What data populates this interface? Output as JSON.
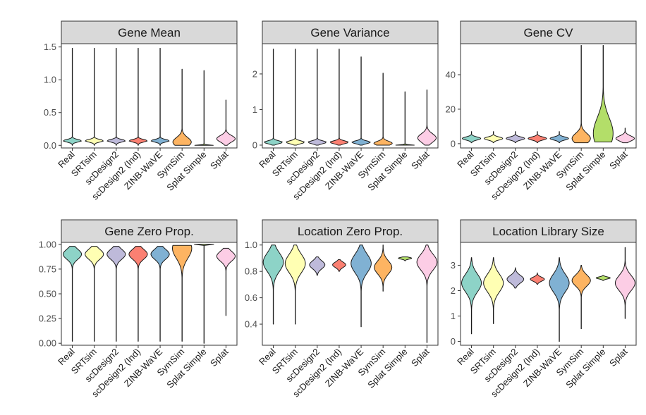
{
  "chart_data": [
    {
      "type": "violin",
      "title": "Gene Mean",
      "ylim": [
        -0.04,
        1.55
      ],
      "yticks": [
        0.0,
        0.5,
        1.0,
        1.5
      ],
      "ytick_labels": [
        "0.0",
        "0.5",
        "1.0",
        "1.5"
      ],
      "categories": [
        "Real",
        "SRTsim",
        "scDesign2",
        "scDesign2 (Ind)",
        "ZINB-WaVE",
        "SymSim",
        "Splat Simple",
        "Splat"
      ],
      "series": [
        {
          "name": "Real",
          "min": 0.0,
          "max": 1.48,
          "mode": 0.07,
          "width": 0.42,
          "spread": 0.02
        },
        {
          "name": "SRTsim",
          "min": 0.0,
          "max": 1.48,
          "mode": 0.07,
          "width": 0.42,
          "spread": 0.02
        },
        {
          "name": "scDesign2",
          "min": 0.0,
          "max": 1.48,
          "mode": 0.07,
          "width": 0.42,
          "spread": 0.02
        },
        {
          "name": "scDesign2 (Ind)",
          "min": 0.0,
          "max": 1.48,
          "mode": 0.07,
          "width": 0.42,
          "spread": 0.02
        },
        {
          "name": "ZINB-WaVE",
          "min": 0.0,
          "max": 1.48,
          "mode": 0.07,
          "width": 0.42,
          "spread": 0.02
        },
        {
          "name": "SymSim",
          "min": 0.0,
          "max": 1.16,
          "mode": 0.05,
          "width": 0.42,
          "spread": 0.07
        },
        {
          "name": "Splat Simple",
          "min": 0.0,
          "max": 1.14,
          "mode": 0.0,
          "width": 0.42,
          "spread": 0.006
        },
        {
          "name": "Splat",
          "min": 0.0,
          "max": 0.69,
          "mode": 0.1,
          "width": 0.42,
          "spread": 0.05
        }
      ]
    },
    {
      "type": "violin",
      "title": "Gene Variance",
      "ylim": [
        -0.08,
        2.85
      ],
      "yticks": [
        0,
        1,
        2
      ],
      "ytick_labels": [
        "0",
        "1",
        "2"
      ],
      "categories": [
        "Real",
        "SRTsim",
        "scDesign2",
        "scDesign2 (Ind)",
        "ZINB-WaVE",
        "SymSim",
        "Splat Simple",
        "Splat"
      ],
      "series": [
        {
          "name": "Real",
          "min": 0.0,
          "max": 2.7,
          "mode": 0.08,
          "width": 0.42,
          "spread": 0.04
        },
        {
          "name": "SRTsim",
          "min": 0.0,
          "max": 2.7,
          "mode": 0.08,
          "width": 0.42,
          "spread": 0.04
        },
        {
          "name": "scDesign2",
          "min": 0.0,
          "max": 2.7,
          "mode": 0.08,
          "width": 0.42,
          "spread": 0.04
        },
        {
          "name": "scDesign2 (Ind)",
          "min": 0.0,
          "max": 2.7,
          "mode": 0.08,
          "width": 0.42,
          "spread": 0.04
        },
        {
          "name": "ZINB-WaVE",
          "min": 0.0,
          "max": 2.48,
          "mode": 0.08,
          "width": 0.42,
          "spread": 0.04
        },
        {
          "name": "SymSim",
          "min": 0.0,
          "max": 2.02,
          "mode": 0.05,
          "width": 0.42,
          "spread": 0.06
        },
        {
          "name": "Splat Simple",
          "min": 0.0,
          "max": 1.5,
          "mode": 0.0,
          "width": 0.42,
          "spread": 0.01
        },
        {
          "name": "Splat",
          "min": 0.0,
          "max": 1.55,
          "mode": 0.2,
          "width": 0.42,
          "spread": 0.12
        }
      ]
    },
    {
      "type": "violin",
      "title": "Gene CV",
      "ylim": [
        -2.5,
        58
      ],
      "yticks": [
        0,
        20,
        40
      ],
      "ytick_labels": [
        "0",
        "20",
        "40"
      ],
      "categories": [
        "Real",
        "SRTsim",
        "scDesign2",
        "scDesign2 (Ind)",
        "ZINB-WaVE",
        "SymSim",
        "Splat Simple",
        "Splat"
      ],
      "series": [
        {
          "name": "Real",
          "min": 0.5,
          "max": 7,
          "mode": 3,
          "width": 0.42,
          "spread": 0.9
        },
        {
          "name": "SRTsim",
          "min": 0.5,
          "max": 7,
          "mode": 3,
          "width": 0.42,
          "spread": 0.9
        },
        {
          "name": "scDesign2",
          "min": 0.5,
          "max": 7,
          "mode": 3,
          "width": 0.42,
          "spread": 0.9
        },
        {
          "name": "scDesign2 (Ind)",
          "min": 0.5,
          "max": 7,
          "mode": 3,
          "width": 0.42,
          "spread": 0.9
        },
        {
          "name": "ZINB-WaVE",
          "min": 0.5,
          "max": 7,
          "mode": 3,
          "width": 0.42,
          "spread": 0.9
        },
        {
          "name": "SymSim",
          "min": 0.5,
          "max": 57,
          "mode": 3,
          "width": 0.42,
          "spread": 3
        },
        {
          "name": "Splat Simple",
          "min": 1,
          "max": 57,
          "mode": 6,
          "width": 0.45,
          "spread": 9
        },
        {
          "name": "Splat",
          "min": 0.5,
          "max": 9,
          "mode": 3,
          "width": 0.42,
          "spread": 1.5
        }
      ]
    },
    {
      "type": "violin",
      "title": "Gene Zero Prop.",
      "ylim": [
        -0.02,
        1.02
      ],
      "yticks": [
        0.0,
        0.25,
        0.5,
        0.75,
        1.0
      ],
      "ytick_labels": [
        "0.00",
        "0.25",
        "0.50",
        "0.75",
        "1.00"
      ],
      "categories": [
        "Real",
        "SRTsim",
        "scDesign2",
        "scDesign2 (Ind)",
        "ZINB-WaVE",
        "SymSim",
        "Splat Simple",
        "Splat"
      ],
      "series": [
        {
          "name": "Real",
          "min": 0.02,
          "max": 0.98,
          "mode": 0.9,
          "width": 0.42,
          "spread": 0.05
        },
        {
          "name": "SRTsim",
          "min": 0.02,
          "max": 0.98,
          "mode": 0.9,
          "width": 0.42,
          "spread": 0.05
        },
        {
          "name": "scDesign2",
          "min": 0.02,
          "max": 0.98,
          "mode": 0.9,
          "width": 0.42,
          "spread": 0.05
        },
        {
          "name": "scDesign2 (Ind)",
          "min": 0.02,
          "max": 0.98,
          "mode": 0.9,
          "width": 0.42,
          "spread": 0.05
        },
        {
          "name": "ZINB-WaVE",
          "min": 0.02,
          "max": 0.98,
          "mode": 0.9,
          "width": 0.42,
          "spread": 0.05
        },
        {
          "name": "SymSim",
          "min": 0.02,
          "max": 0.99,
          "mode": 0.96,
          "width": 0.44,
          "spread": 0.1
        },
        {
          "name": "Splat Simple",
          "min": 0.0,
          "max": 1.0,
          "mode": 1.0,
          "width": 0.44,
          "spread": 0.003
        },
        {
          "name": "Splat",
          "min": 0.28,
          "max": 0.96,
          "mode": 0.88,
          "width": 0.42,
          "spread": 0.05
        }
      ]
    },
    {
      "type": "violin",
      "title": "Location Zero Prop.",
      "ylim": [
        0.24,
        1.02
      ],
      "yticks": [
        0.4,
        0.6,
        0.8,
        1.0
      ],
      "ytick_labels": [
        "0.4",
        "0.6",
        "0.8",
        "1.0"
      ],
      "categories": [
        "Real",
        "SRTsim",
        "scDesign2",
        "scDesign2 (Ind)",
        "ZINB-WaVE",
        "SymSim",
        "Splat Simple",
        "Splat"
      ],
      "series": [
        {
          "name": "Real",
          "min": 0.4,
          "max": 1.0,
          "mode": 0.87,
          "width": 0.46,
          "spread": 0.07
        },
        {
          "name": "SRTsim",
          "min": 0.4,
          "max": 1.0,
          "mode": 0.86,
          "width": 0.46,
          "spread": 0.07
        },
        {
          "name": "scDesign2",
          "min": 0.77,
          "max": 0.91,
          "mode": 0.85,
          "width": 0.35,
          "spread": 0.03
        },
        {
          "name": "scDesign2 (Ind)",
          "min": 0.8,
          "max": 0.89,
          "mode": 0.85,
          "width": 0.3,
          "spread": 0.02
        },
        {
          "name": "ZINB-WaVE",
          "min": 0.38,
          "max": 1.0,
          "mode": 0.86,
          "width": 0.46,
          "spread": 0.07
        },
        {
          "name": "SymSim",
          "min": 0.65,
          "max": 1.0,
          "mode": 0.83,
          "width": 0.4,
          "spread": 0.05
        },
        {
          "name": "Splat Simple",
          "min": 0.88,
          "max": 0.91,
          "mode": 0.9,
          "width": 0.3,
          "spread": 0.007
        },
        {
          "name": "Splat",
          "min": 0.26,
          "max": 1.0,
          "mode": 0.87,
          "width": 0.46,
          "spread": 0.06
        }
      ]
    },
    {
      "type": "violin",
      "title": "Location Library Size",
      "ylim": [
        -0.15,
        3.9
      ],
      "yticks": [
        0,
        1,
        2,
        3
      ],
      "ytick_labels": [
        "0",
        "1",
        "2",
        "3"
      ],
      "categories": [
        "Real",
        "SRTsim",
        "scDesign2",
        "scDesign2 (Ind)",
        "ZINB-WaVE",
        "SymSim",
        "Splat Simple",
        "Splat"
      ],
      "series": [
        {
          "name": "Real",
          "min": 0.3,
          "max": 3.3,
          "mode": 2.3,
          "width": 0.45,
          "spread": 0.35
        },
        {
          "name": "SRTsim",
          "min": 0.7,
          "max": 3.3,
          "mode": 2.3,
          "width": 0.45,
          "spread": 0.35
        },
        {
          "name": "scDesign2",
          "min": 2.1,
          "max": 2.9,
          "mode": 2.45,
          "width": 0.38,
          "spread": 0.15
        },
        {
          "name": "scDesign2 (Ind)",
          "min": 2.25,
          "max": 2.7,
          "mode": 2.45,
          "width": 0.32,
          "spread": 0.08
        },
        {
          "name": "ZINB-WaVE",
          "min": 0.0,
          "max": 3.3,
          "mode": 2.3,
          "width": 0.45,
          "spread": 0.35
        },
        {
          "name": "SymSim",
          "min": 0.5,
          "max": 3.0,
          "mode": 2.4,
          "width": 0.42,
          "spread": 0.22
        },
        {
          "name": "Splat Simple",
          "min": 2.4,
          "max": 2.6,
          "mode": 2.5,
          "width": 0.32,
          "spread": 0.04
        },
        {
          "name": "Splat",
          "min": 0.9,
          "max": 3.7,
          "mode": 2.3,
          "width": 0.45,
          "spread": 0.3
        }
      ]
    }
  ],
  "palette": [
    "#8dd3c7",
    "#ffffb3",
    "#bebada",
    "#fb8072",
    "#80b1d3",
    "#fdb462",
    "#b3de69",
    "#fccde5"
  ],
  "strip_fill": "#d9d9d9"
}
